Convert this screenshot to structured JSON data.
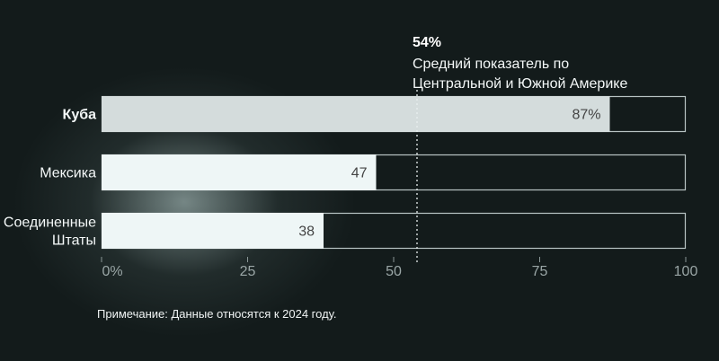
{
  "chart_data": {
    "type": "bar",
    "orientation": "horizontal",
    "categories": [
      "Куба",
      "Мексика",
      "Соединенные Штаты"
    ],
    "category_lines": [
      [
        "Куба"
      ],
      [
        "Мексика"
      ],
      [
        "Соединенные",
        "Штаты"
      ]
    ],
    "values": [
      87,
      47,
      38
    ],
    "value_labels": [
      "87%",
      "47",
      "38"
    ],
    "xlim": [
      0,
      100
    ],
    "xticks": [
      0,
      25,
      50,
      75,
      100
    ],
    "xtick_labels": [
      "0%",
      "25",
      "50",
      "75",
      "100"
    ],
    "reference_line": {
      "value": 54,
      "label": "54%",
      "text_lines": [
        "Средний показатель по",
        "Центральной и Южной Америке"
      ]
    },
    "colors": {
      "highlight": "#d4dcdc",
      "bar": "#eef6f6",
      "track_border": "#b8c4c4",
      "background": "#131b1b"
    }
  },
  "note": "Примечание: Данные относятся к 2024 году."
}
